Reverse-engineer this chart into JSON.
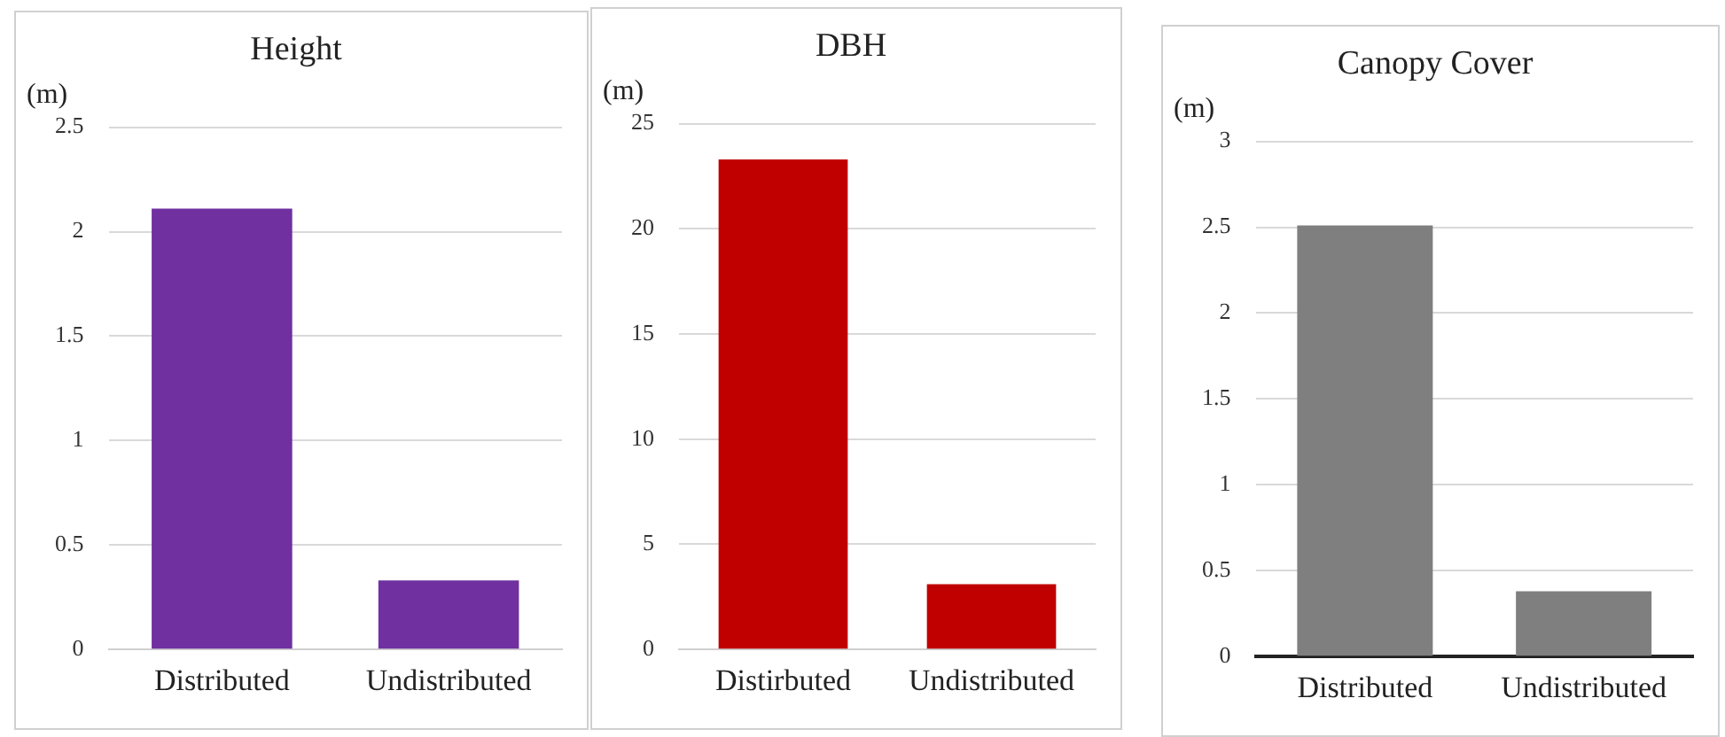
{
  "chart_data": [
    {
      "type": "bar",
      "title": "Height",
      "ylabel": "(m)",
      "categories": [
        "Distributed",
        "Undistributed"
      ],
      "values": [
        2.11,
        0.33
      ],
      "color": "#7030a0",
      "ylim": [
        0,
        2.5
      ],
      "yticks": [
        0,
        0.5,
        1,
        1.5,
        2,
        2.5
      ],
      "grid": "y"
    },
    {
      "type": "bar",
      "title": "DBH",
      "ylabel": "(m)",
      "categories": [
        "Distirbuted",
        "Undistributed"
      ],
      "values": [
        23.3,
        3.1
      ],
      "color": "#c00000",
      "ylim": [
        0,
        25
      ],
      "yticks": [
        0,
        5,
        10,
        15,
        20,
        25
      ],
      "grid": "y"
    },
    {
      "type": "bar",
      "title": "Canopy Cover",
      "ylabel": "(m)",
      "categories": [
        "Distributed",
        "Undistributed"
      ],
      "values": [
        2.51,
        0.38
      ],
      "color": "#7f7f7f",
      "ylim": [
        0,
        3
      ],
      "yticks": [
        0,
        0.5,
        1,
        1.5,
        2,
        2.5,
        3
      ],
      "grid": "y"
    }
  ]
}
